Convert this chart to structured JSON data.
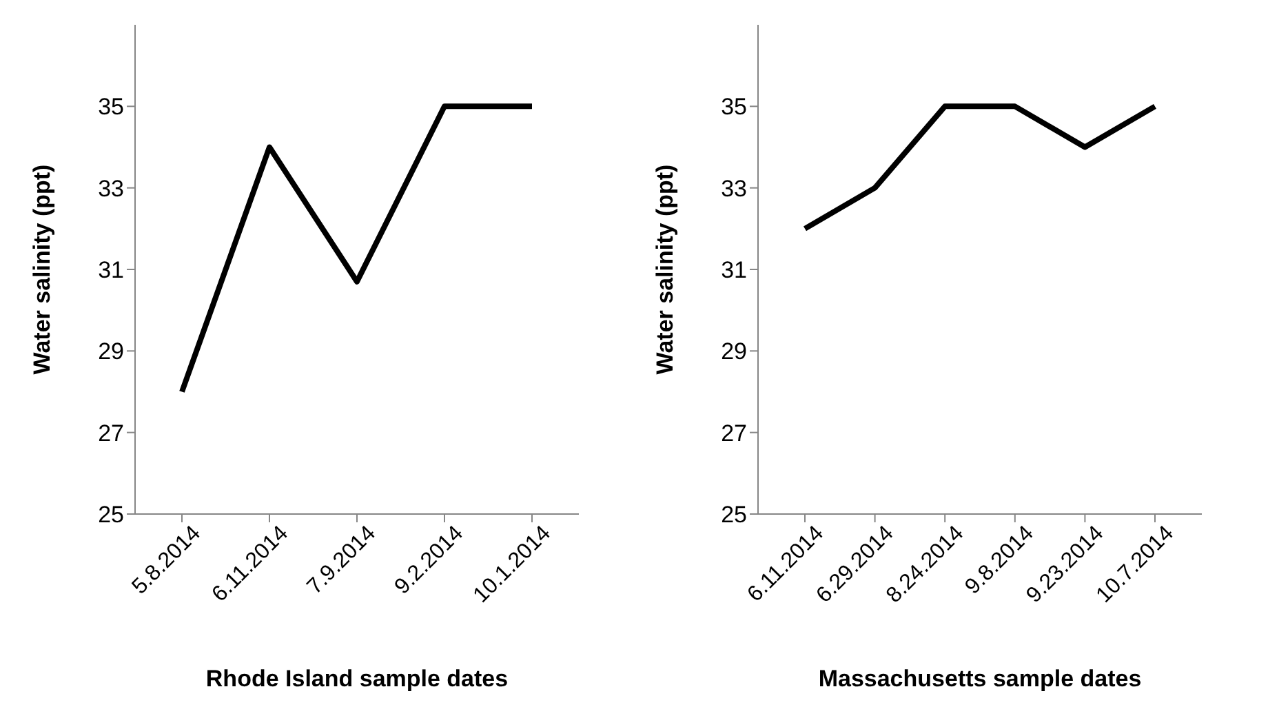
{
  "chart_data": [
    {
      "type": "line",
      "xlabel": "Rhode Island sample dates",
      "ylabel": "Water salinity (ppt)",
      "categories": [
        "5.8.2014",
        "6.11.2014",
        "7.9.2014",
        "9.2.2014",
        "10.1.2014"
      ],
      "series": [
        {
          "color": "#000000",
          "values": [
            28,
            34,
            30.7,
            35,
            35
          ]
        }
      ],
      "ylim": [
        25,
        37
      ],
      "yticks": [
        25,
        27,
        29,
        31,
        33,
        35
      ],
      "marker": "none",
      "legend": false
    },
    {
      "type": "line",
      "xlabel": "Massachusetts sample dates",
      "ylabel": "Water salinity (ppt)",
      "categories": [
        "6.11.2014",
        "6.29.2014",
        "8.24.2014",
        "9.8.2014",
        "9.23.2014",
        "10.7.2014"
      ],
      "series": [
        {
          "color": "#000000",
          "values": [
            32,
            33,
            35,
            35,
            34,
            35
          ]
        }
      ],
      "ylim": [
        25,
        37
      ],
      "yticks": [
        25,
        27,
        29,
        31,
        33,
        35
      ],
      "marker": "none",
      "legend": false
    }
  ]
}
